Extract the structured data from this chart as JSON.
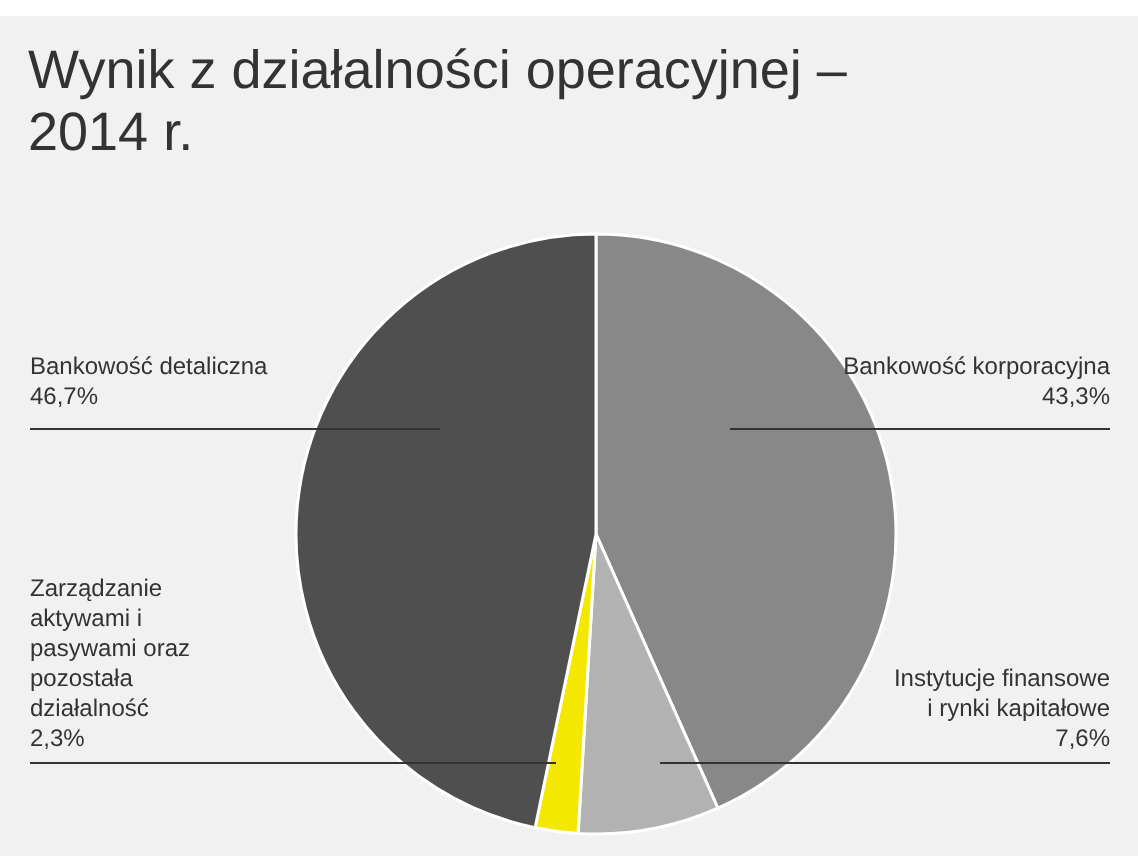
{
  "chart_data": {
    "type": "pie",
    "title": "Wynik z działalności operacyjnej – 2014 r.",
    "categories": [
      "Bankowość korporacyjna",
      "Instytucje finansowe i rynki kapitałowe",
      "Zarządzanie aktywami i pasywami oraz pozostała działalność",
      "Bankowość detaliczna"
    ],
    "values": [
      43.3,
      7.6,
      2.3,
      46.7
    ],
    "colors": [
      "#888888",
      "#b2b2b2",
      "#f5e800",
      "#4f4f4f"
    ],
    "value_labels": [
      "43,3%",
      "7,6%",
      "2,3%",
      "46,7%"
    ],
    "legend": false
  }
}
